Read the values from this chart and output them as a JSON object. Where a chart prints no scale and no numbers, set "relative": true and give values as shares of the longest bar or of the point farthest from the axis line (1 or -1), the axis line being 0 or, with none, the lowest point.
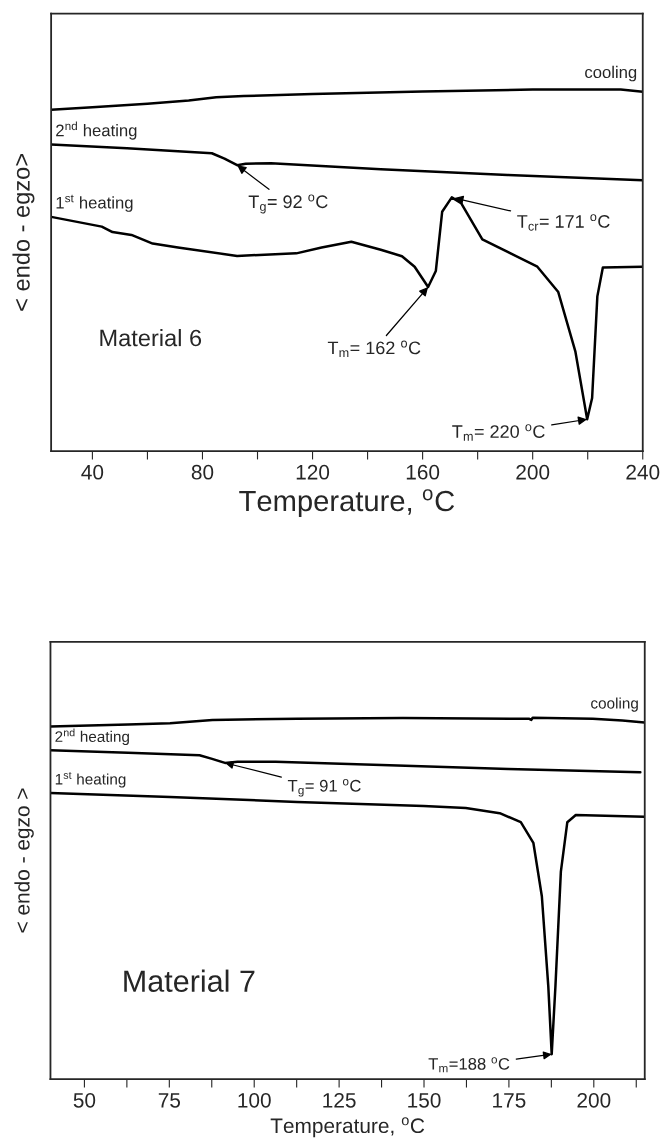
{
  "chart_data": [
    {
      "type": "line",
      "xlabel": "Temperature, $^{o}$C",
      "ylabel": "< endo - egzo>",
      "relative": true,
      "xlim": [
        25,
        240
      ],
      "xticks": [
        40,
        {
          "value": 60,
          "label": null
        },
        80,
        {
          "value": 100,
          "label": null
        },
        120,
        {
          "value": 140,
          "label": null
        },
        160,
        {
          "value": 180,
          "label": null
        },
        200,
        {
          "value": 220,
          "label": null
        },
        240
      ],
      "tick_labels": "x",
      "grid": false,
      "legend": false,
      "line_style": "solid",
      "marker": "none",
      "series": [
        {
          "name": "cooling",
          "color": "#000000",
          "x": [
            25,
            40,
            60,
            75,
            85,
            95,
            120,
            160,
            200,
            232,
            240
          ],
          "values": [
            0.944,
            0.951,
            0.961,
            0.97,
            0.979,
            0.982,
            0.988,
            0.995,
            1.0,
            1.0,
            0.994
          ]
        },
        {
          "name": "2$^{nd}$ heating",
          "color": "#000000",
          "x": [
            25,
            52.6,
            83.4,
            88,
            92.6,
            95.7,
            104.9,
            144.8,
            190.9,
            240
          ],
          "values": [
            0.848,
            0.838,
            0.824,
            0.809,
            0.791,
            0.795,
            0.796,
            0.78,
            0.764,
            0.749
          ]
        },
        {
          "name": "1$^{st}$ heating",
          "color": "#000000",
          "x": [
            25,
            43.4,
            47.3,
            54.2,
            61.9,
            71.1,
            92.6,
            114.1,
            123.3,
            134.1,
            144.8,
            152.5,
            157.1,
            162,
            164.8,
            167.1,
            170.6,
            174,
            181.7,
            190.9,
            201.7,
            209.3,
            215.5,
            219.8,
            221.6,
            223.5,
            225.5,
            240
          ],
          "values": [
            0.648,
            0.621,
            0.606,
            0.598,
            0.574,
            0.563,
            0.54,
            0.547,
            0.563,
            0.579,
            0.557,
            0.539,
            0.51,
            0.454,
            0.498,
            0.662,
            0.702,
            0.686,
            0.586,
            0.551,
            0.51,
            0.44,
            0.276,
            0.088,
            0.147,
            0.428,
            0.508,
            0.51
          ]
        }
      ],
      "annotations": [
        {
          "text": "T$_{g}$= 92 $^{o}$C",
          "x": 92.6,
          "y": 0.791
        },
        {
          "text": "T$_{cr}$= 171 $^{o}$C",
          "x": 171.5,
          "y": 0.7
        },
        {
          "text": "T$_{m}$= 162 $^{o}$C",
          "x": 162,
          "y": 0.454
        },
        {
          "text": "T$_{m}$= 220 $^{o}$C",
          "x": 219.8,
          "y": 0.088
        },
        "Material 6"
      ]
    },
    {
      "type": "line",
      "xlabel": "Temperature, $^{o}$C",
      "ylabel": "< endo - egzo >",
      "relative": true,
      "xlim": [
        40,
        215
      ],
      "xticks": [
        50,
        {
          "value": 62.5,
          "label": null
        },
        75,
        {
          "value": 87.5,
          "label": null
        },
        100,
        {
          "value": 112.5,
          "label": null
        },
        125,
        {
          "value": 137.5,
          "label": null
        },
        150,
        {
          "value": 162.5,
          "label": null
        },
        175,
        {
          "value": 187.5,
          "label": null
        },
        200,
        {
          "value": 212.5,
          "label": null
        }
      ],
      "tick_labels": "x",
      "grid": false,
      "legend": false,
      "line_style": "solid",
      "marker": "none",
      "series": [
        {
          "name": "cooling",
          "color": "#000000",
          "x": [
            40,
            62.8,
            75.2,
            87.7,
            112.6,
            143.7,
            181,
            181.6,
            182,
            199.7,
            208.4,
            214.9
          ],
          "values": [
            0.976,
            0.981,
            0.985,
            0.994,
            0.997,
            0.999,
            0.997,
            0.994,
            1.0,
            0.997,
            0.992,
            0.987
          ]
        },
        {
          "name": "2$^{nd}$ heating",
          "color": "#000000",
          "x": [
            40,
            62.8,
            83.9,
            87.6,
            91.4,
            95.1,
            106.3,
            137.5,
            174.8,
            213.7
          ],
          "values": [
            0.91,
            0.903,
            0.896,
            0.886,
            0.875,
            0.878,
            0.878,
            0.869,
            0.858,
            0.849
          ]
        },
        {
          "name": "1$^{st}$ heating",
          "color": "#000000",
          "x": [
            40,
            75.2,
            112.6,
            149.9,
            162.3,
            172.3,
            178.5,
            182.2,
            184.7,
            186.6,
            187.6,
            188.7,
            190.3,
            192.2,
            194.7,
            214.9
          ],
          "values": [
            0.792,
            0.781,
            0.767,
            0.756,
            0.75,
            0.736,
            0.711,
            0.654,
            0.506,
            0.257,
            0.069,
            0.257,
            0.574,
            0.711,
            0.731,
            0.726
          ]
        }
      ],
      "annotations": [
        {
          "text": "T$_{g}$= 91 $^{o}$C",
          "x": 91.4,
          "y": 0.875
        },
        {
          "text": "T$_{m}$=188 $^{o}$C",
          "x": 187.6,
          "y": 0.069
        },
        "Material 7"
      ]
    }
  ]
}
